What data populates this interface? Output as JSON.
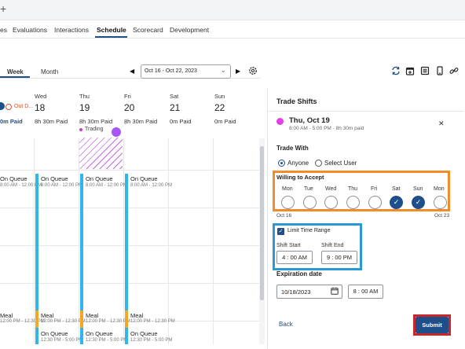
{
  "nav": {
    "tabs": [
      {
        "label": "es"
      },
      {
        "label": "Evaluations"
      },
      {
        "label": "Interactions"
      },
      {
        "label": "Schedule"
      },
      {
        "label": "Scorecard"
      },
      {
        "label": "Development"
      }
    ],
    "active": "Schedule"
  },
  "toolbar": {
    "views": [
      "Week",
      "Month"
    ],
    "active_view": "Week",
    "date_range": "Oct 16 - Oct 22, 2023",
    "icons": [
      "sync-icon",
      "calendar-add-icon",
      "list-icon",
      "mobile-icon",
      "link-icon"
    ]
  },
  "calendar": {
    "days": [
      {
        "name": "Wed",
        "num": "18",
        "paid": "8h 30m Paid"
      },
      {
        "name": "Thu",
        "num": "19",
        "paid": "8h 30m Paid"
      },
      {
        "name": "Fri",
        "num": "20",
        "paid": "8h 30m Paid"
      },
      {
        "name": "Sat",
        "num": "21",
        "paid": "0m Paid"
      },
      {
        "name": "Sun",
        "num": "22",
        "paid": "0m Paid"
      }
    ],
    "partial_day_paid": "0m Paid",
    "out_label": "Out D...",
    "trading_label": "Trading",
    "shifts": {
      "queue_title": "On Queue",
      "queue_time": "8:00 AM - 12:00 PM",
      "queue_time_alt": "8:00 AM - 12:00 PM",
      "meal_title": "Meal",
      "meal_time": "12:00 PM - 12:30 PM",
      "queue2_time": "12:30 PM - 5:00 PM"
    }
  },
  "trade_panel": {
    "title": "Trade Shifts",
    "shift_date": "Thu, Oct 19",
    "shift_time": "8:00 AM - 5:00 PM · 8h 30m paid",
    "trade_with_label": "Trade With",
    "trade_with_options": [
      "Anyone",
      "Select User"
    ],
    "trade_with_selected": "Anyone",
    "willing_label": "Willing to Accept",
    "weekdays": [
      {
        "name": "Mon",
        "checked": false
      },
      {
        "name": "Tue",
        "checked": false
      },
      {
        "name": "Wed",
        "checked": false
      },
      {
        "name": "Thu",
        "checked": false
      },
      {
        "name": "Fri",
        "checked": false
      },
      {
        "name": "Sat",
        "checked": true
      },
      {
        "name": "Sun",
        "checked": true
      },
      {
        "name": "Mon",
        "checked": false
      }
    ],
    "range_start": "Oct 16",
    "range_end": "Oct 23",
    "limit_time_label": "Limit Time Range",
    "limit_time_checked": true,
    "shift_start_label": "Shift Start",
    "shift_end_label": "Shift End",
    "shift_start_value": "4 : 00 AM",
    "shift_end_value": "9 : 00 PM",
    "expiration_label": "Expiration date",
    "expiration_date": "10/18/2023",
    "expiration_time": "8 : 00 AM",
    "back_label": "Back",
    "submit_label": "Submit"
  },
  "colors": {
    "brand_blue": "#1f4f8a",
    "queue_blue": "#2fb7ec",
    "meal_orange": "#f5a623",
    "highlight_orange": "#f28c28",
    "highlight_blue": "#2a9ad4",
    "highlight_red": "#c8262b",
    "trading_purple": "#a855f7"
  }
}
